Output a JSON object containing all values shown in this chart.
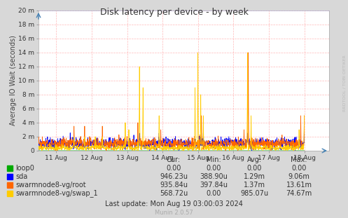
{
  "title": "Disk latency per device - by week",
  "ylabel": "Average IO Wait (seconds)",
  "background_color": "#d8d8d8",
  "plot_bg_color": "#ffffff",
  "grid_color": "#ff9999",
  "y_ticks_labels": [
    "0",
    "2 m",
    "4 m",
    "6 m",
    "8 m",
    "10 m",
    "12 m",
    "14 m",
    "16 m",
    "18 m",
    "20 m"
  ],
  "y_ticks_values": [
    0,
    0.002,
    0.004,
    0.006,
    0.008,
    0.01,
    0.012,
    0.014,
    0.016,
    0.018,
    0.02
  ],
  "ylim": [
    0,
    0.02
  ],
  "x_tick_labels": [
    "11 Aug",
    "12 Aug",
    "13 Aug",
    "14 Aug",
    "15 Aug",
    "16 Aug",
    "17 Aug",
    "18 Aug"
  ],
  "x_tick_positions": [
    1,
    2,
    3,
    4,
    5,
    6,
    7,
    8
  ],
  "legend_items": [
    {
      "label": "loop0",
      "color": "#00aa00"
    },
    {
      "label": "sda",
      "color": "#0000ff"
    },
    {
      "label": "swarmnode8-vg/root",
      "color": "#ff6600"
    },
    {
      "label": "swarmnode8-vg/swap_1",
      "color": "#ffcc00"
    }
  ],
  "table_headers": [
    "Cur:",
    "Min:",
    "Avg:",
    "Max:"
  ],
  "table_data": [
    [
      "0.00",
      "0.00",
      "0.00",
      "0.00"
    ],
    [
      "946.23u",
      "388.90u",
      "1.29m",
      "9.06m"
    ],
    [
      "935.84u",
      "397.84u",
      "1.37m",
      "13.61m"
    ],
    [
      "568.72u",
      "0.00",
      "985.07u",
      "74.67m"
    ]
  ],
  "footer": "Last update: Mon Aug 19 03:00:03 2024",
  "munin_version": "Munin 2.0.57",
  "rrdtool_label": "RRDTOOL / TOBI OETIKER",
  "colors": {
    "loop0": "#00aa00",
    "sda": "#0000ff",
    "swarmnode8-vg/root": "#ff6600",
    "swarmnode8-vg/swap_1": "#ffcc00"
  }
}
